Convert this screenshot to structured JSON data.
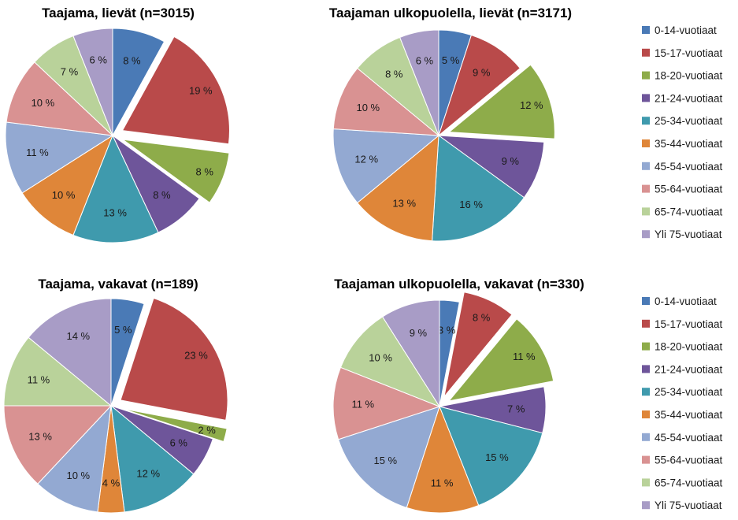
{
  "colors": [
    "#4a7ab6",
    "#b94a4a",
    "#8eac4a",
    "#6e559a",
    "#3f9aad",
    "#df8639",
    "#93a9d2",
    "#d99292",
    "#b9d29a",
    "#a89cc6"
  ],
  "legends": [
    [
      "0-14-vuotiaat",
      "15-17-vuotiaat",
      "18-20-vuotiaat",
      "21-24-vuotiaat",
      "25-34-vuotiaat",
      "35-44-vuotiaat",
      "45-54-vuotiaat",
      "55-64-vuotiaat",
      "65-74-vuotiaat",
      "Yli 75-vuotiaat"
    ],
    [
      "0-14-vuotiaat",
      "15-17-vuotiaat",
      "18-20-vuotiaat",
      "21-24-vuotiaat",
      "25-34-vuotiaat",
      "35-44-vuotiaat",
      "45-54-vuotiaat",
      "55-64-vuotiaat",
      "65-74-vuotiaat",
      "Yli 75-vuotiaat"
    ]
  ],
  "chart_data": [
    {
      "type": "pie",
      "title": "Taajama, lievät (n=3015)",
      "categories": [
        "0-14-vuotiaat",
        "15-17-vuotiaat",
        "18-20-vuotiaat",
        "21-24-vuotiaat",
        "25-34-vuotiaat",
        "35-44-vuotiaat",
        "45-54-vuotiaat",
        "55-64-vuotiaat",
        "65-74-vuotiaat",
        "Yli 75-vuotiaat"
      ],
      "values": [
        8,
        19,
        8,
        8,
        13,
        10,
        11,
        10,
        7,
        6
      ],
      "labels": [
        "8 %",
        "19 %",
        "8 %",
        "8 %",
        "13 %",
        "10 %",
        "11 %",
        "10 %",
        "7 %",
        "6 %"
      ],
      "exploded": [
        "15-17-vuotiaat",
        "18-20-vuotiaat"
      ]
    },
    {
      "type": "pie",
      "title": "Taajaman ulkopuolella, lievät (n=3171)",
      "categories": [
        "0-14-vuotiaat",
        "15-17-vuotiaat",
        "18-20-vuotiaat",
        "21-24-vuotiaat",
        "25-34-vuotiaat",
        "35-44-vuotiaat",
        "45-54-vuotiaat",
        "55-64-vuotiaat",
        "65-74-vuotiaat",
        "Yli 75-vuotiaat"
      ],
      "values": [
        5,
        9,
        12,
        9,
        16,
        13,
        12,
        10,
        8,
        6
      ],
      "labels": [
        "5 %",
        "9 %",
        "12 %",
        "9 %",
        "16 %",
        "13 %",
        "12 %",
        "10 %",
        "8 %",
        "6 %"
      ],
      "exploded": [
        "18-20-vuotiaat"
      ]
    },
    {
      "type": "pie",
      "title": "Taajama, vakavat (n=189)",
      "categories": [
        "0-14-vuotiaat",
        "15-17-vuotiaat",
        "18-20-vuotiaat",
        "21-24-vuotiaat",
        "25-34-vuotiaat",
        "35-44-vuotiaat",
        "45-54-vuotiaat",
        "55-64-vuotiaat",
        "65-74-vuotiaat",
        "Yli 75-vuotiaat"
      ],
      "values": [
        5,
        23,
        2,
        6,
        12,
        4,
        10,
        13,
        11,
        14
      ],
      "labels": [
        "5 %",
        "23 %",
        "2 %",
        "6 %",
        "12 %",
        "4 %",
        "10 %",
        "13 %",
        "11 %",
        "14 %"
      ],
      "exploded": [
        "15-17-vuotiaat",
        "18-20-vuotiaat"
      ]
    },
    {
      "type": "pie",
      "title": "Taajaman ulkopuolella, vakavat (n=330)",
      "categories": [
        "0-14-vuotiaat",
        "15-17-vuotiaat",
        "18-20-vuotiaat",
        "21-24-vuotiaat",
        "25-34-vuotiaat",
        "35-44-vuotiaat",
        "45-54-vuotiaat",
        "55-64-vuotiaat",
        "65-74-vuotiaat",
        "Yli 75-vuotiaat"
      ],
      "values": [
        3,
        8,
        11,
        7,
        15,
        11,
        15,
        11,
        10,
        9
      ],
      "labels": [
        "3 %",
        "8 %",
        "11 %",
        "7 %",
        "15 %",
        "11 %",
        "15 %",
        "11 %",
        "10 %",
        "9 %"
      ],
      "exploded": [
        "15-17-vuotiaat",
        "18-20-vuotiaat"
      ]
    }
  ]
}
